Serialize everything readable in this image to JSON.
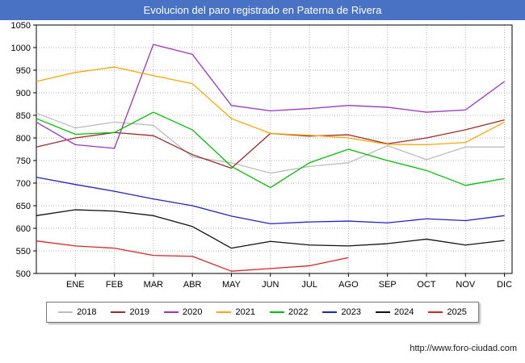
{
  "title_bar": {
    "title": "Evolucion del paro registrado en Paterna de Rivera"
  },
  "footer": {
    "url": "http://www.foro-ciudad.com"
  },
  "chart_data": {
    "type": "line",
    "title": "Evolucion del paro registrado en Paterna de Rivera",
    "xlabel": "",
    "ylabel": "",
    "months": [
      "ENE",
      "FEB",
      "MAR",
      "ABR",
      "MAY",
      "JUN",
      "JUL",
      "AGO",
      "SEP",
      "OCT",
      "NOV",
      "DIC"
    ],
    "ylim": [
      500,
      1050
    ],
    "ytick_step": 50,
    "grid": true,
    "legend_position": "bottom",
    "note": "Each series begins with one value plotted on the y-axis (previous December) followed by monthly values; 2025 runs through AGO only.",
    "series": [
      {
        "name": "2018",
        "color": "#bdbdbd",
        "values": [
          855,
          822,
          835,
          828,
          758,
          745,
          722,
          737,
          745,
          783,
          752,
          780,
          780
        ]
      },
      {
        "name": "2019",
        "color": "#9e2a2a",
        "values": [
          780,
          800,
          812,
          805,
          763,
          733,
          810,
          804,
          807,
          787,
          800,
          818,
          840
        ]
      },
      {
        "name": "2020",
        "color": "#9933cc",
        "values": [
          835,
          785,
          777,
          1007,
          985,
          872,
          860,
          865,
          872,
          868,
          857,
          862,
          925
        ]
      },
      {
        "name": "2021",
        "color": "#ffa500",
        "values": [
          925,
          945,
          957,
          938,
          920,
          843,
          810,
          806,
          800,
          786,
          785,
          790,
          835
        ]
      },
      {
        "name": "2022",
        "color": "#00c000",
        "values": [
          843,
          808,
          812,
          857,
          818,
          737,
          690,
          745,
          775,
          750,
          728,
          695,
          710
        ]
      },
      {
        "name": "2023",
        "color": "#2222cc",
        "values": [
          713,
          697,
          682,
          665,
          650,
          627,
          610,
          614,
          616,
          612,
          621,
          617,
          628
        ]
      },
      {
        "name": "2024",
        "color": "#111111",
        "values": [
          628,
          641,
          638,
          628,
          604,
          556,
          571,
          563,
          561,
          566,
          576,
          563,
          573
        ]
      },
      {
        "name": "2025",
        "color": "#dd2222",
        "values": [
          572,
          561,
          556,
          540,
          538,
          505,
          511,
          517,
          535
        ]
      }
    ]
  }
}
